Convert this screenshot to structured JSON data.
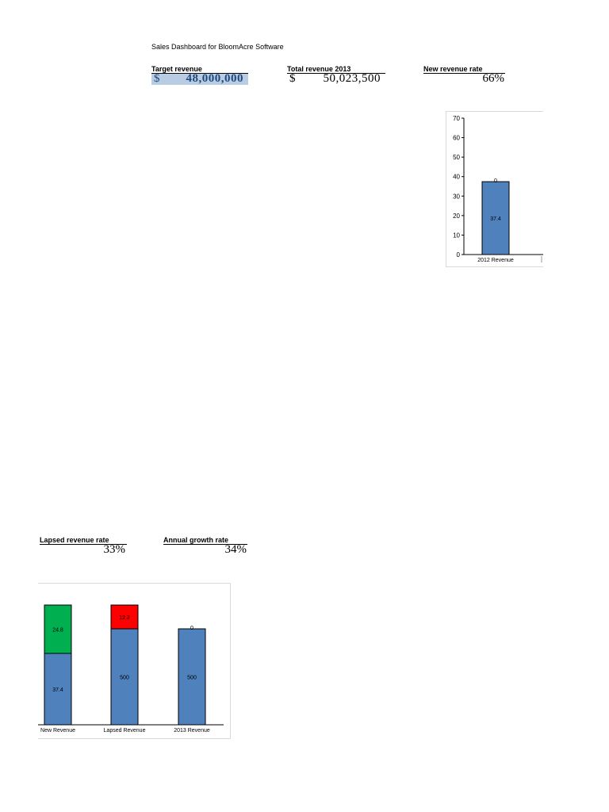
{
  "dashboard": {
    "title": "Sales Dashboard for BloomAcre Software"
  },
  "kpis": {
    "target_revenue": {
      "label": "Target revenue",
      "currency": "$",
      "value": "48,000,000"
    },
    "total_revenue": {
      "label": "Total revenue 2013",
      "currency": "$",
      "value": "50,023,500"
    },
    "new_revenue_rate": {
      "label": "New revenue rate",
      "value": "66%"
    },
    "lapsed_revenue_rate": {
      "label": "Lapsed revenue rate",
      "value": "33%"
    },
    "annual_growth_rate": {
      "label": "Annual growth rate",
      "value": "34%"
    }
  },
  "chart_data": [
    {
      "type": "bar",
      "categories": [
        "2012 Revenue"
      ],
      "series": [
        {
          "values": [
            37.4
          ],
          "labels": [
            "37.4"
          ],
          "color": "#4f81bd"
        }
      ],
      "top_labels": [
        "0"
      ],
      "y_ticks": [
        0,
        10,
        20,
        30,
        40,
        50,
        60,
        70
      ],
      "ylim": [
        0,
        70
      ],
      "grid": false,
      "legend": "none"
    },
    {
      "type": "bar",
      "stacked": true,
      "categories": [
        "New Revenue",
        "Lapsed Revenue",
        "2013 Revenue"
      ],
      "series": [
        {
          "values": [
            37.4,
            500,
            500
          ],
          "labels": [
            "37.4",
            "500",
            "500"
          ],
          "color": "#4f81bd"
        },
        {
          "values": [
            24.8,
            12.2,
            0
          ],
          "labels": [
            "24.8",
            "12.2",
            ""
          ],
          "colors": [
            "#00b050",
            "#ff0000",
            "#ff0000"
          ]
        }
      ],
      "top_labels": [
        "",
        "",
        "0"
      ],
      "grid": false,
      "legend": "none"
    }
  ]
}
